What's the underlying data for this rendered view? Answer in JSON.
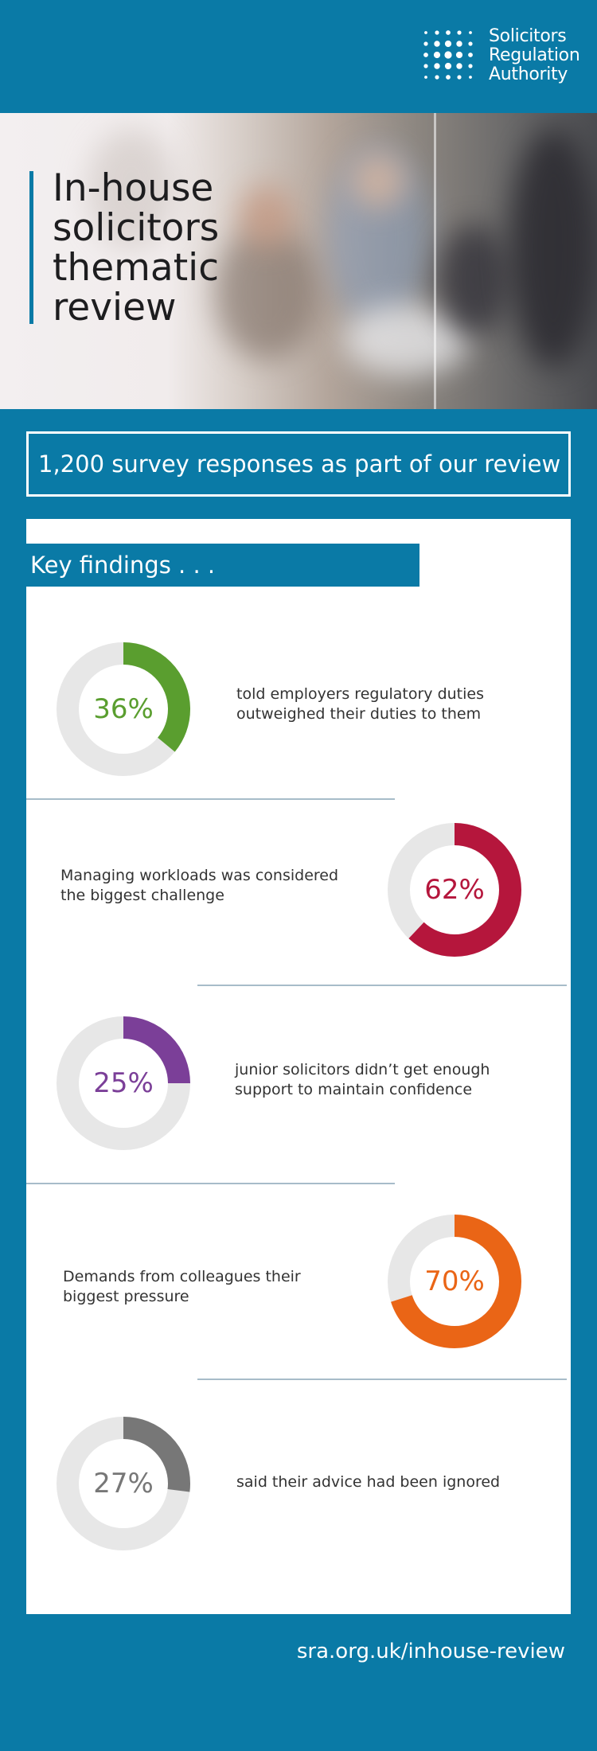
{
  "logo": {
    "lines": [
      "Solicitors",
      "Regulation",
      "Authority"
    ]
  },
  "hero": {
    "title_lines": [
      "In-house",
      "solicitors",
      "thematic",
      "review"
    ]
  },
  "survey": {
    "text": "1,200 survey responses as part of our review"
  },
  "key_findings": {
    "heading": "Key findings . . .",
    "items": [
      {
        "percent_label": "36%",
        "value": 36,
        "color": "#5a9e2f",
        "text_lines": [
          "told employers regulatory duties",
          "outweighed their duties to them"
        ]
      },
      {
        "percent_label": "62%",
        "value": 62,
        "color": "#b5163c",
        "text_lines": [
          "Managing workloads was considered",
          "the biggest challenge"
        ]
      },
      {
        "percent_label": "25%",
        "value": 25,
        "color": "#7b3f98",
        "text_lines": [
          "junior solicitors didn’t get enough",
          "support to maintain confidence"
        ]
      },
      {
        "percent_label": "70%",
        "value": 70,
        "color": "#ea6516",
        "text_lines": [
          "Demands from colleagues their",
          "biggest pressure"
        ]
      },
      {
        "percent_label": "27%",
        "value": 27,
        "color": "#777777",
        "text_lines": [
          "said their advice had been ignored"
        ]
      }
    ]
  },
  "footer": {
    "link": "sra.org.uk/inhouse-review"
  },
  "colors": {
    "brand_blue": "#0a7aa6",
    "track_gray": "#e7e7e7",
    "divider": "#a7bcc9"
  }
}
